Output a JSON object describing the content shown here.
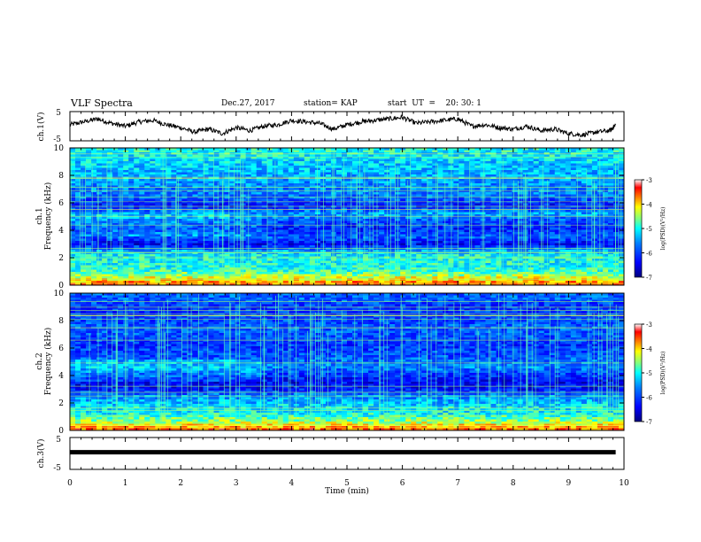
{
  "header": {
    "title": "VLF Spectra",
    "date": "Dec.27, 2017",
    "station": "station= KAP",
    "start": "start  UT  =    20: 30: 1"
  },
  "chart_data": [
    {
      "type": "line",
      "panel": "ch1-voltage",
      "ylabel": "ch.1(V)",
      "ylim": [
        -5,
        5
      ],
      "yticks": [
        "5",
        "-5"
      ],
      "xlim": [
        0,
        10
      ],
      "x": [
        0,
        0.25,
        0.5,
        0.75,
        1,
        1.25,
        1.5,
        1.75,
        2,
        2.25,
        2.5,
        2.75,
        3,
        3.25,
        3.5,
        3.75,
        4,
        4.25,
        4.5,
        4.75,
        5,
        5.25,
        5.5,
        5.75,
        6,
        6.25,
        6.5,
        6.75,
        7,
        7.25,
        7.5,
        7.75,
        8,
        8.25,
        8.5,
        8.75,
        9,
        9.25,
        9.5,
        9.75,
        9.85
      ],
      "y": [
        0.5,
        1.5,
        2.5,
        1,
        0,
        1.5,
        2,
        0.5,
        -0.5,
        -2,
        -1,
        -2.5,
        -0.5,
        -1.5,
        0,
        0.5,
        2,
        1.5,
        1,
        -1,
        0.5,
        1.5,
        2,
        2.5,
        3,
        1,
        1.5,
        2,
        2.5,
        0,
        0.5,
        -0.5,
        -1,
        0,
        -1.5,
        -1,
        -2.5,
        -3,
        -2,
        -1.5,
        0.5
      ]
    },
    {
      "type": "heatmap",
      "panel": "ch1-spectrogram",
      "ylabel": "ch.1\nFrequency (kHz)",
      "ylim": [
        0,
        10
      ],
      "yticks": [
        "0",
        "2",
        "4",
        "6",
        "8",
        "10"
      ],
      "xlim": [
        0,
        10
      ],
      "colorbar": {
        "label": "log(PSD)(V²/Hz)",
        "range": [
          -7,
          -3
        ],
        "ticks": [
          "-3",
          "-4",
          "-5",
          "-6",
          "-7"
        ]
      },
      "bands": [
        [
          0.2,
          -3.8
        ],
        [
          0.5,
          -4.2
        ],
        [
          1.0,
          -4.8
        ],
        [
          1.5,
          -5.0
        ],
        [
          2.1,
          -5.0
        ],
        [
          2.4,
          -5.3
        ],
        [
          3.0,
          -6.4
        ],
        [
          3.5,
          -5.8
        ],
        [
          4.1,
          -6.2
        ],
        [
          4.7,
          -5.9
        ],
        [
          5.2,
          -5.4
        ],
        [
          5.8,
          -6.3
        ],
        [
          6.5,
          -5.7
        ],
        [
          7.2,
          -5.6
        ],
        [
          8.0,
          -5.4
        ],
        [
          9.0,
          -5.2
        ],
        [
          9.8,
          -5.0
        ]
      ]
    },
    {
      "type": "heatmap",
      "panel": "ch2-spectrogram",
      "ylabel": "ch.2\nFrequency (kHz)",
      "ylim": [
        0,
        10
      ],
      "yticks": [
        "0",
        "2",
        "4",
        "6",
        "8",
        "10"
      ],
      "xlim": [
        0,
        10
      ],
      "colorbar": {
        "label": "log(PSD)(V²/Hz)",
        "range": [
          -7,
          -3
        ],
        "ticks": [
          "-3",
          "-4",
          "-5",
          "-6",
          "-7"
        ]
      },
      "bands": [
        [
          0.2,
          -3.8
        ],
        [
          0.6,
          -4.4
        ],
        [
          1.2,
          -5.0
        ],
        [
          1.8,
          -5.2
        ],
        [
          2.5,
          -5.6
        ],
        [
          3.0,
          -6.3
        ],
        [
          3.6,
          -6.4
        ],
        [
          4.0,
          -6.1
        ],
        [
          4.6,
          -5.6
        ],
        [
          5.4,
          -5.9
        ],
        [
          6.2,
          -6.1
        ],
        [
          6.9,
          -5.9
        ],
        [
          7.5,
          -5.8
        ],
        [
          8.2,
          -6.0
        ],
        [
          9.0,
          -6.1
        ],
        [
          9.6,
          -5.8
        ]
      ]
    },
    {
      "type": "line",
      "panel": "ch3-voltage",
      "ylabel": "ch.3(V)",
      "ylim": [
        -5,
        5
      ],
      "yticks": [
        "5",
        "-5"
      ],
      "xlim": [
        0,
        10
      ],
      "x": [
        0,
        9.85
      ],
      "y": [
        0.4,
        0.4
      ]
    }
  ],
  "xaxis": {
    "label": "Time  (min)",
    "ticks": [
      "0",
      "1",
      "2",
      "3",
      "4",
      "5",
      "6",
      "7",
      "8",
      "9",
      "10"
    ]
  },
  "colors": {
    "cmap": [
      "#00007f",
      "#0000ff",
      "#0080ff",
      "#00ffff",
      "#80ff80",
      "#ffff00",
      "#ff8000",
      "#ff0000",
      "#ffffff"
    ]
  }
}
